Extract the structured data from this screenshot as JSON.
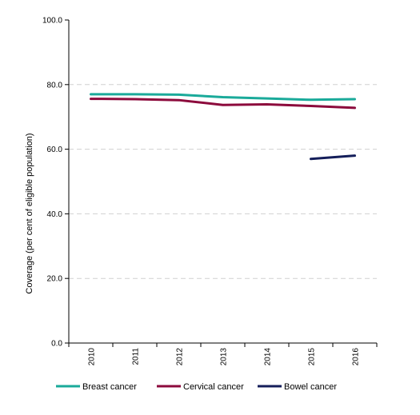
{
  "chart_data": {
    "type": "line",
    "x": [
      "2010",
      "2011",
      "2012",
      "2013",
      "2014",
      "2015",
      "2016"
    ],
    "ylabel": "Coverage  (per cent of eligible population)",
    "ylim": [
      0,
      100
    ],
    "yticks": [
      "0.0",
      "20.0",
      "40.0",
      "60.0",
      "80.0",
      "100.0"
    ],
    "grid": "horizontal dashed",
    "legend": "bottom",
    "series": [
      {
        "name": "Breast cancer",
        "color": "#1aaa9a",
        "values": [
          77.0,
          77.0,
          76.9,
          76.1,
          75.7,
          75.3,
          75.5
        ]
      },
      {
        "name": "Cervical cancer",
        "color": "#8c0a3c",
        "values": [
          75.6,
          75.5,
          75.2,
          73.7,
          73.9,
          73.4,
          72.8
        ]
      },
      {
        "name": "Bowel cancer",
        "color": "#141e5a",
        "values": [
          null,
          null,
          null,
          null,
          null,
          57.0,
          58.0
        ]
      }
    ]
  }
}
